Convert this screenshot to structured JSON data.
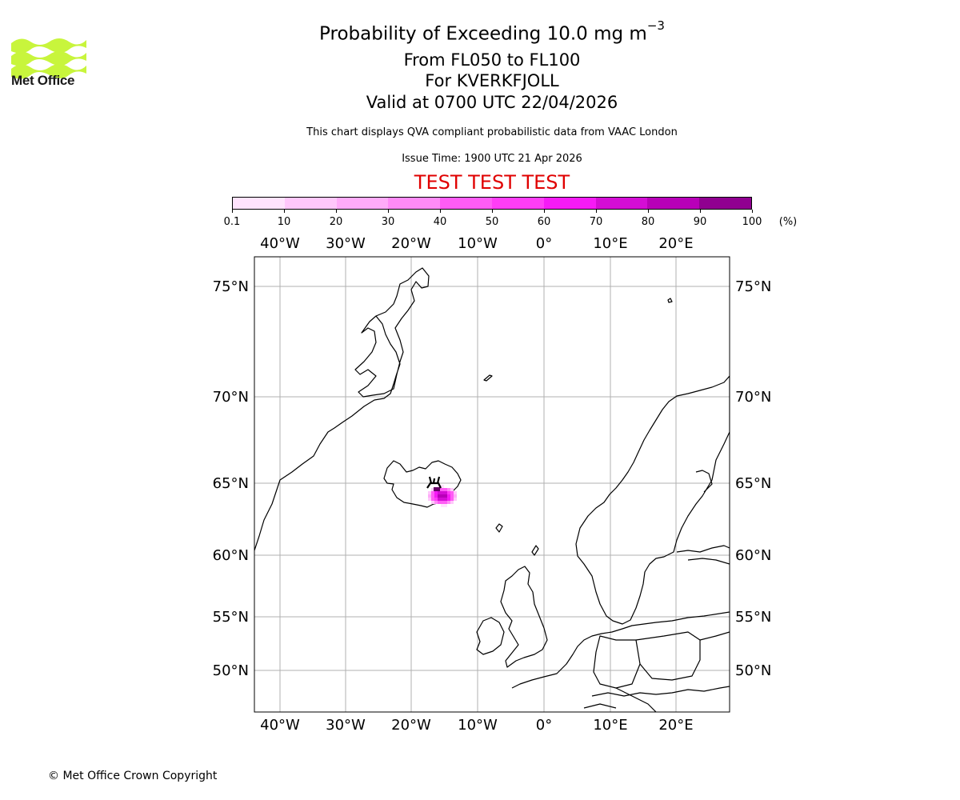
{
  "header": {
    "title_prefix": "Probability of Exceeding 10.0 mg m",
    "title_exponent": "−3",
    "levels": "From FL050 to FL100",
    "volcano": "For KVERKFJOLL",
    "valid": "Valid at 0700 UTC 22/04/2026",
    "description": "This chart displays QVA compliant probabilistic data from VAAC London",
    "issue_time": "Issue Time: 1900 UTC 21 Apr 2026",
    "test_banner": "TEST TEST TEST"
  },
  "logo": {
    "text": "Met Office",
    "color": "#c8f53c"
  },
  "colorbar": {
    "ticks": [
      "0.1",
      "10",
      "20",
      "30",
      "40",
      "50",
      "60",
      "70",
      "80",
      "90",
      "100"
    ],
    "unit": "(%)",
    "colors": [
      "#ffe3fd",
      "#ffc7fb",
      "#ffabf9",
      "#ff8bf7",
      "#ff5cf5",
      "#ff3df6",
      "#f61af6",
      "#d40dd5",
      "#b800b8",
      "#900090"
    ],
    "last_color": "#690069"
  },
  "map": {
    "lon_labels": [
      "40°W",
      "30°W",
      "20°W",
      "10°W",
      "0°",
      "10°E",
      "20°E"
    ],
    "lat_labels": [
      "75°N",
      "70°N",
      "65°N",
      "60°N",
      "55°N",
      "50°N"
    ],
    "volcano_marker": "volcano-icon",
    "plume": {
      "center_lat": 64.6,
      "center_lon": -16.7,
      "peak_probability_percent": 100
    }
  },
  "footer": {
    "copyright": "© Met Office Crown Copyright"
  }
}
